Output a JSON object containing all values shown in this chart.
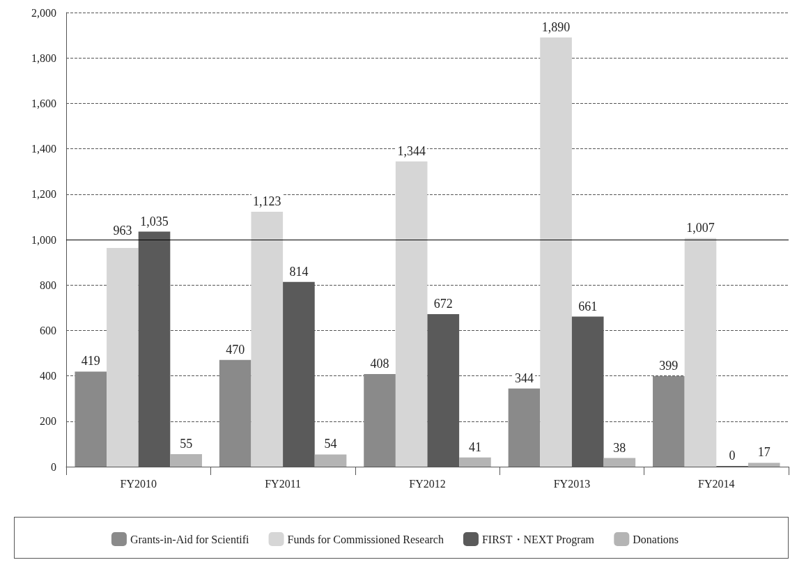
{
  "chart_data": {
    "type": "bar",
    "categories": [
      "FY2010",
      "FY2011",
      "FY2012",
      "FY2013",
      "FY2014"
    ],
    "series": [
      {
        "name": "Grants-in-Aid for Scientifi",
        "color": "#8a8a8a",
        "values": [
          419,
          470,
          408,
          344,
          399
        ]
      },
      {
        "name": "Funds for Commissioned Research",
        "color": "#d6d6d6",
        "values": [
          963,
          1123,
          1344,
          1890,
          1007
        ],
        "value_labels": [
          "963",
          "1,123",
          "1,344",
          "1,890",
          "1,007"
        ]
      },
      {
        "name": "FIRST・NEXT Program",
        "color": "#5a5a5a",
        "values": [
          1035,
          814,
          672,
          661,
          0
        ],
        "value_labels": [
          "1,035",
          "814",
          "672",
          "661",
          "0"
        ]
      },
      {
        "name": "Donations",
        "color": "#b4b4b4",
        "values": [
          55,
          54,
          41,
          38,
          17
        ]
      }
    ],
    "ylim": [
      0,
      2000
    ],
    "yticks": [
      0,
      200,
      400,
      600,
      800,
      {
        "value": 1000,
        "label": "1,000"
      },
      {
        "value": 1200,
        "label": "1,200"
      },
      {
        "value": 1400,
        "label": "1,400"
      },
      {
        "value": 1600,
        "label": "1,600"
      },
      {
        "value": 1800,
        "label": "1,800"
      },
      {
        "value": 2000,
        "label": "2,000"
      }
    ],
    "grid": "y",
    "legend": "bottom",
    "data_labels": true,
    "ref_lines": [
      {
        "axis": "y",
        "value": 1000,
        "color": "#000000",
        "line_style": "solid"
      }
    ]
  }
}
